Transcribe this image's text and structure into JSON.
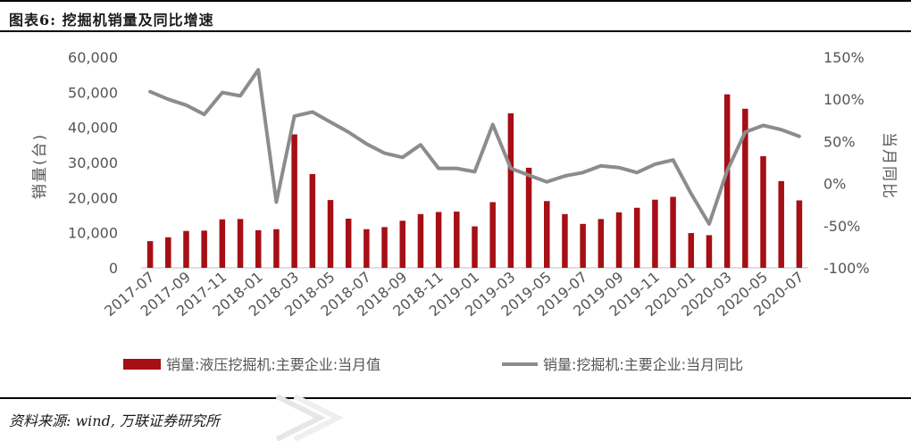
{
  "title": "图表6: 挖掘机销量及同比增速",
  "source": "资料来源: wind, 万联证券研究所",
  "colors": {
    "bar": "#a50f15",
    "line": "#8c8c8c",
    "axis_text": "#555555"
  },
  "chart_data": {
    "type": "bar+line",
    "y_left_label": "销量(台)",
    "y_right_label": "当月同比",
    "y_left_ticks": [
      "60,000",
      "50,000",
      "40,000",
      "30,000",
      "20,000",
      "10,000",
      "0"
    ],
    "y_right_ticks": [
      "150%",
      "100%",
      "50%",
      "0%",
      "-50%",
      "-100%"
    ],
    "ylim_left": [
      0,
      60000
    ],
    "ylim_right": [
      -100,
      150
    ],
    "x_tick_labels": [
      "2017-07",
      "2017-09",
      "2017-11",
      "2018-01",
      "2018-03",
      "2018-05",
      "2018-07",
      "2018-09",
      "2018-11",
      "2019-01",
      "2019-03",
      "2019-05",
      "2019-07",
      "2019-09",
      "2019-11",
      "2020-01",
      "2020-03",
      "2020-05",
      "2020-07"
    ],
    "categories": [
      "2017-07",
      "2017-08",
      "2017-09",
      "2017-10",
      "2017-11",
      "2017-12",
      "2018-01",
      "2018-02",
      "2018-03",
      "2018-04",
      "2018-05",
      "2018-06",
      "2018-07",
      "2018-08",
      "2018-09",
      "2018-10",
      "2018-11",
      "2018-12",
      "2019-01",
      "2019-02",
      "2019-03",
      "2019-04",
      "2019-05",
      "2019-06",
      "2019-07",
      "2019-08",
      "2019-09",
      "2019-10",
      "2019-11",
      "2019-12",
      "2020-01",
      "2020-02",
      "2020-03",
      "2020-04",
      "2020-05",
      "2020-06",
      "2020-07"
    ],
    "series": [
      {
        "name": "销量:液压挖掘机:主要企业:当月值",
        "type": "bar",
        "axis": "left",
        "values": [
          7600,
          8700,
          10500,
          10600,
          13800,
          13900,
          10700,
          11000,
          38000,
          26700,
          19300,
          14000,
          11000,
          11600,
          13400,
          15300,
          15900,
          16000,
          11800,
          18700,
          44000,
          28500,
          19000,
          15300,
          12500,
          13900,
          15800,
          17100,
          19400,
          20200,
          9900,
          9300,
          49400,
          45300,
          31800,
          24700,
          19200
        ]
      },
      {
        "name": "销量:挖掘机:主要企业:当月同比",
        "type": "line",
        "axis": "right",
        "values": [
          109,
          100,
          93,
          82,
          108,
          104,
          135,
          -22,
          80,
          85,
          73,
          61,
          47,
          36,
          31,
          46,
          18,
          18,
          14,
          70,
          18,
          10,
          2,
          9,
          13,
          21,
          19,
          13,
          23,
          28,
          -12,
          -48,
          15,
          61,
          69,
          64,
          56
        ]
      }
    ],
    "legend": "bottom"
  }
}
